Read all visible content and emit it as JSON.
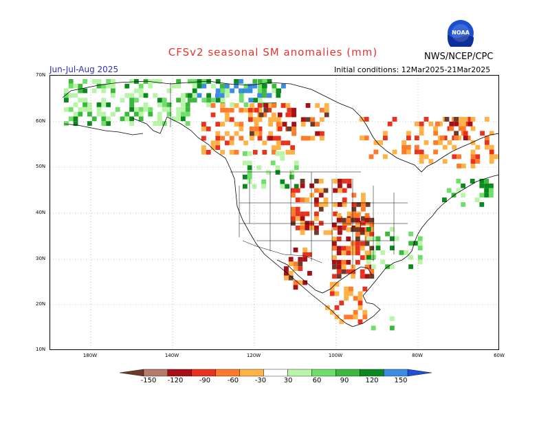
{
  "title": "CFSv2 seasonal SM anomalies (mm)",
  "season": "Jun-Jul-Aug 2025",
  "initial_conditions": "Initial conditions: 12Mar2025-21Mar2025",
  "org": "NWS/NCEP/CPC",
  "logo_text": "NOAA",
  "lat_labels": [
    "70N",
    "60N",
    "50N",
    "40N",
    "30N",
    "20N",
    "10N"
  ],
  "lon_labels": [
    "180W",
    "140W",
    "120W",
    "100W",
    "80W",
    "60W"
  ],
  "colorbar": {
    "ticks": [
      "-150",
      "-120",
      "-90",
      "-60",
      "-30",
      "30",
      "60",
      "90",
      "120",
      "150"
    ],
    "colors": [
      "#6b3a2a",
      "#b87a6a",
      "#a50f15",
      "#e8321e",
      "#ff7a2a",
      "#ffb347",
      "#ffffff",
      "#b9f5a8",
      "#6ee06a",
      "#3cb83c",
      "#0a8a1e",
      "#3c8ce6",
      "#1e50d8"
    ]
  },
  "colors": {
    "dry_extreme": "#6b3a2a",
    "dry_strong": "#a50f15",
    "dry_mod": "#e8321e",
    "dry_light": "#ff7a2a",
    "dry_weak": "#ffb347",
    "wet_weak": "#b9f5a8",
    "wet_light": "#6ee06a",
    "wet_mod": "#3cb83c",
    "wet_strong": "#0a8a1e",
    "wet_vstrong": "#3c8ce6"
  }
}
